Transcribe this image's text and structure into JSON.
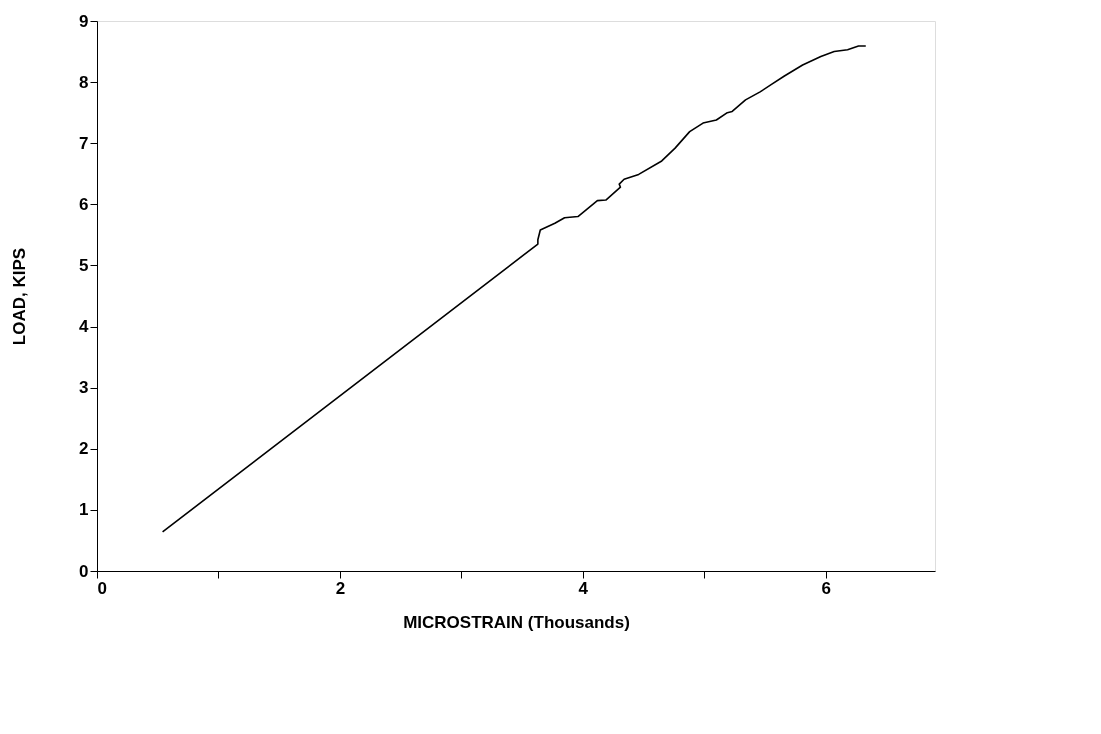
{
  "chart_data": {
    "type": "line",
    "xlabel": "MICROSTRAIN (Thousands)",
    "ylabel": "LOAD, KIPS",
    "xlim": [
      0,
      6.9
    ],
    "ylim": [
      0,
      9
    ],
    "xticks": [
      0,
      {
        "value": 1,
        "label": null
      },
      2,
      {
        "value": 3,
        "label": null
      },
      4,
      {
        "value": 5,
        "label": null
      },
      6
    ],
    "yticks": [
      0,
      1,
      2,
      3,
      4,
      5,
      6,
      7,
      8,
      9
    ],
    "grid": false,
    "marker": "none",
    "line_style": "solid",
    "series": [
      {
        "color": "#000000",
        "x": [
          0.54,
          3.63,
          3.63,
          3.65,
          3.77,
          3.85,
          3.96,
          4.04,
          4.12,
          4.19,
          4.31,
          4.3,
          4.34,
          4.46,
          4.65,
          4.76,
          4.88,
          4.99,
          5.1,
          5.19,
          5.23,
          5.34,
          5.46,
          5.56,
          5.66,
          5.81,
          5.96,
          6.07,
          6.18,
          6.27,
          6.33
        ],
        "values": [
          0.64,
          5.35,
          5.42,
          5.58,
          5.69,
          5.78,
          5.8,
          5.93,
          6.06,
          6.07,
          6.28,
          6.33,
          6.41,
          6.49,
          6.71,
          6.92,
          7.19,
          7.33,
          7.38,
          7.5,
          7.52,
          7.71,
          7.84,
          7.97,
          8.1,
          8.28,
          8.42,
          8.5,
          8.53,
          8.59,
          8.59
        ]
      }
    ]
  }
}
